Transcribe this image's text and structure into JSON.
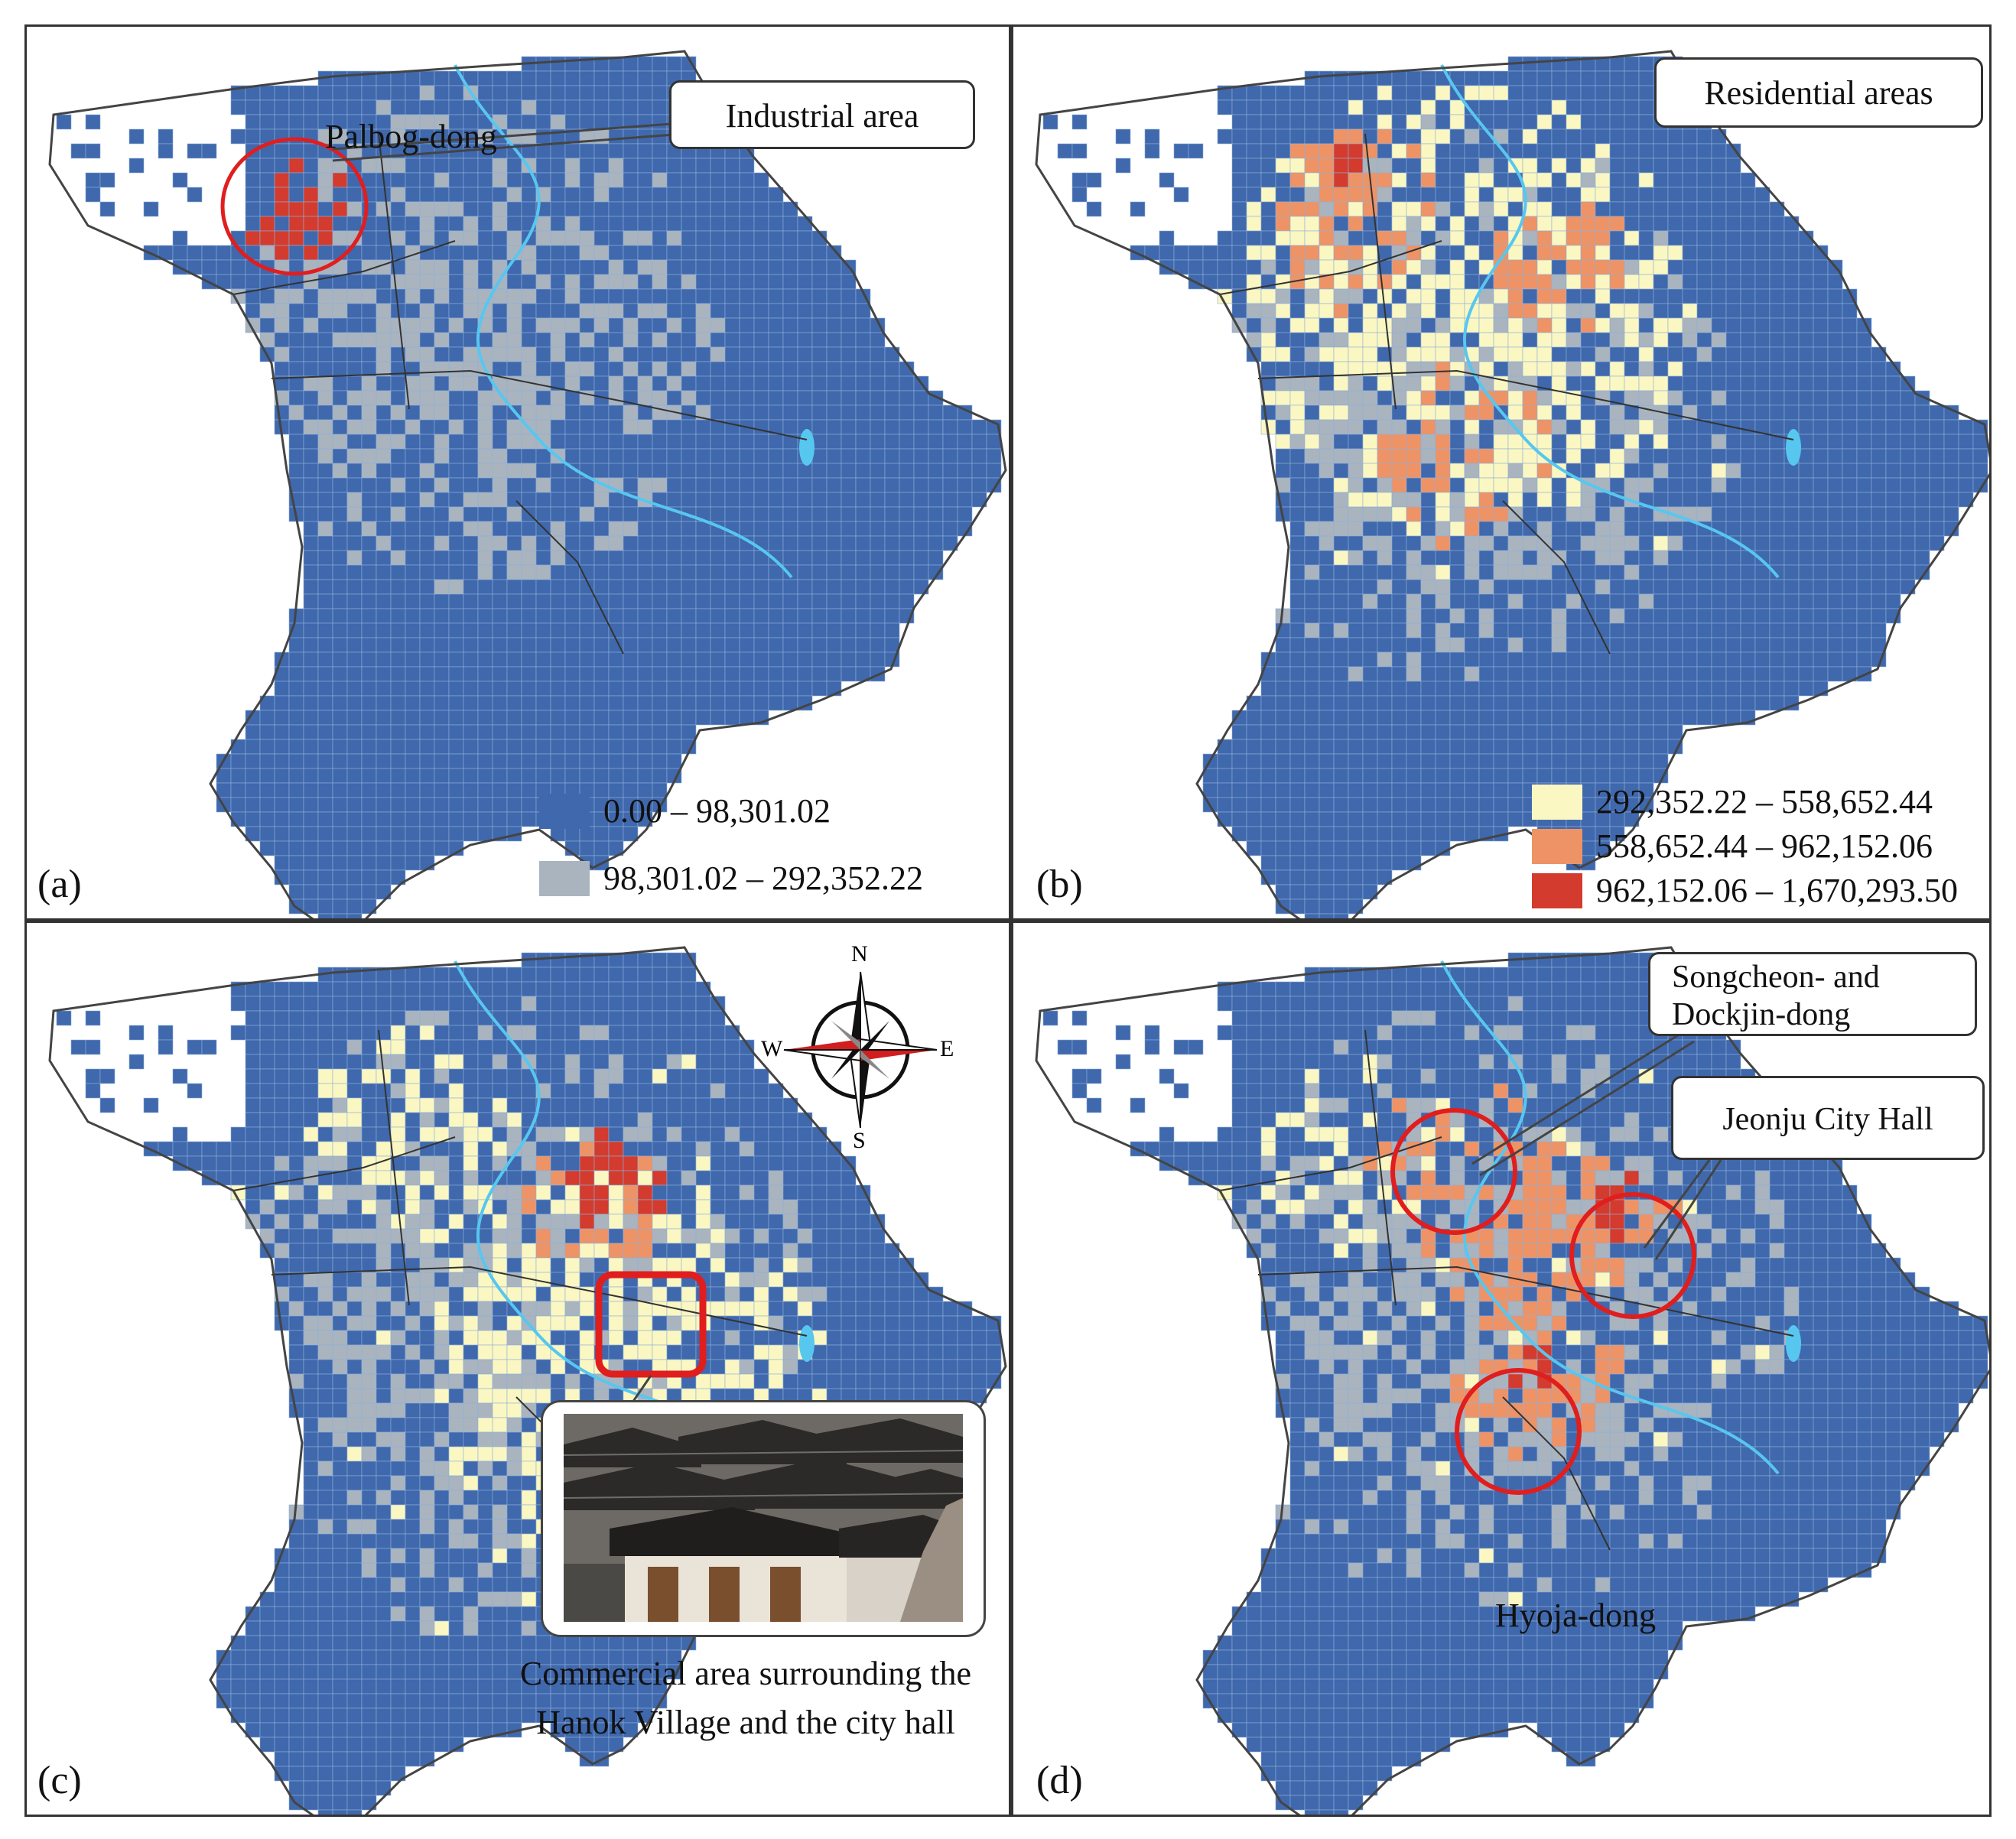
{
  "colors": {
    "class1": "#3f68ad",
    "class2": "#a9b4bf",
    "class3": "#fbf7c2",
    "class4": "#ee9366",
    "class5": "#d33b2e",
    "water": "#57c7f0",
    "highlight": "#e01e1e"
  },
  "legend": {
    "class1": "0.00 – 98,301.02",
    "class2": "98,301.02 – 292,352.22",
    "class3": "292,352.22 – 558,652.44",
    "class4": "558,652.44 – 962,152.06",
    "class5": "962,152.06 – 1,670,293.50"
  },
  "panels": {
    "a": {
      "label": "(a)",
      "place_name": "Palbog-dong",
      "callout": "Industrial area"
    },
    "b": {
      "label": "(b)",
      "callout": "Residential areas"
    },
    "c": {
      "label": "(c)",
      "caption": "Commercial area surrounding the Hanok Village and the city hall",
      "compass": {
        "n": "N",
        "s": "S",
        "e": "E",
        "w": "W",
        "icon": "compass-rose-icon"
      }
    },
    "d": {
      "label": "(d)",
      "callout_1": "Songcheon- and Dockjin-dong",
      "callout_2": "Jeonju City Hall",
      "place_name": "Hyoja-dong"
    }
  }
}
